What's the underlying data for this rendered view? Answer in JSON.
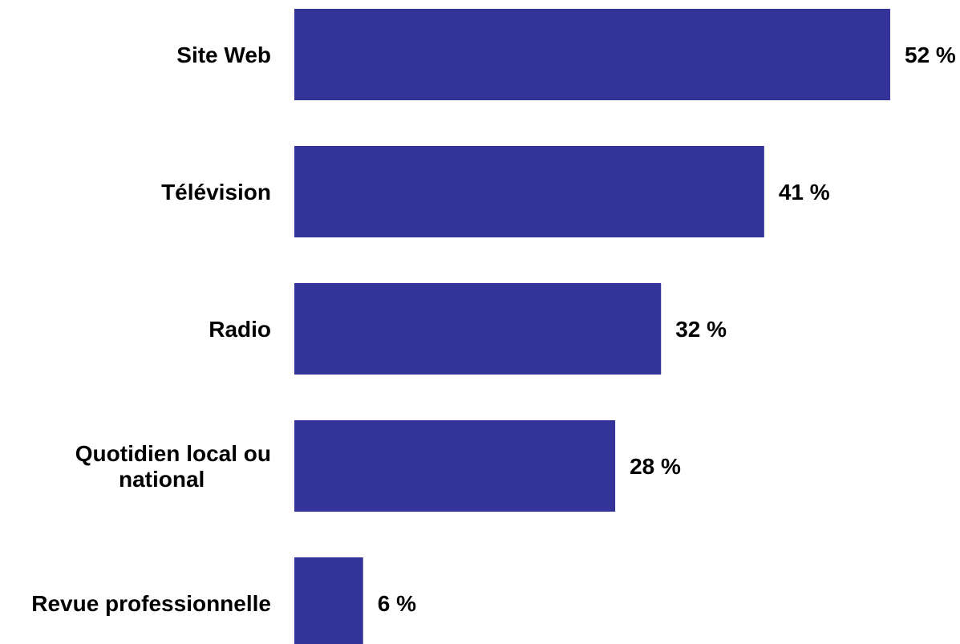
{
  "chart_data": {
    "type": "bar",
    "orientation": "horizontal",
    "title": "",
    "xlabel": "",
    "ylabel": "",
    "categories": [
      [
        "Site Web"
      ],
      [
        "Télévision"
      ],
      [
        "Radio"
      ],
      [
        "Quotidien local ou",
        "national"
      ],
      [
        "Revue professionnelle"
      ]
    ],
    "values": [
      52,
      41,
      32,
      28,
      6
    ],
    "value_labels": [
      "52 %",
      "41 %",
      "32 %",
      "28 %",
      "6 %"
    ],
    "value_unit": "%",
    "xlim": [
      0,
      52
    ],
    "grid": false,
    "legend": "none",
    "bar_color": "#333399"
  }
}
